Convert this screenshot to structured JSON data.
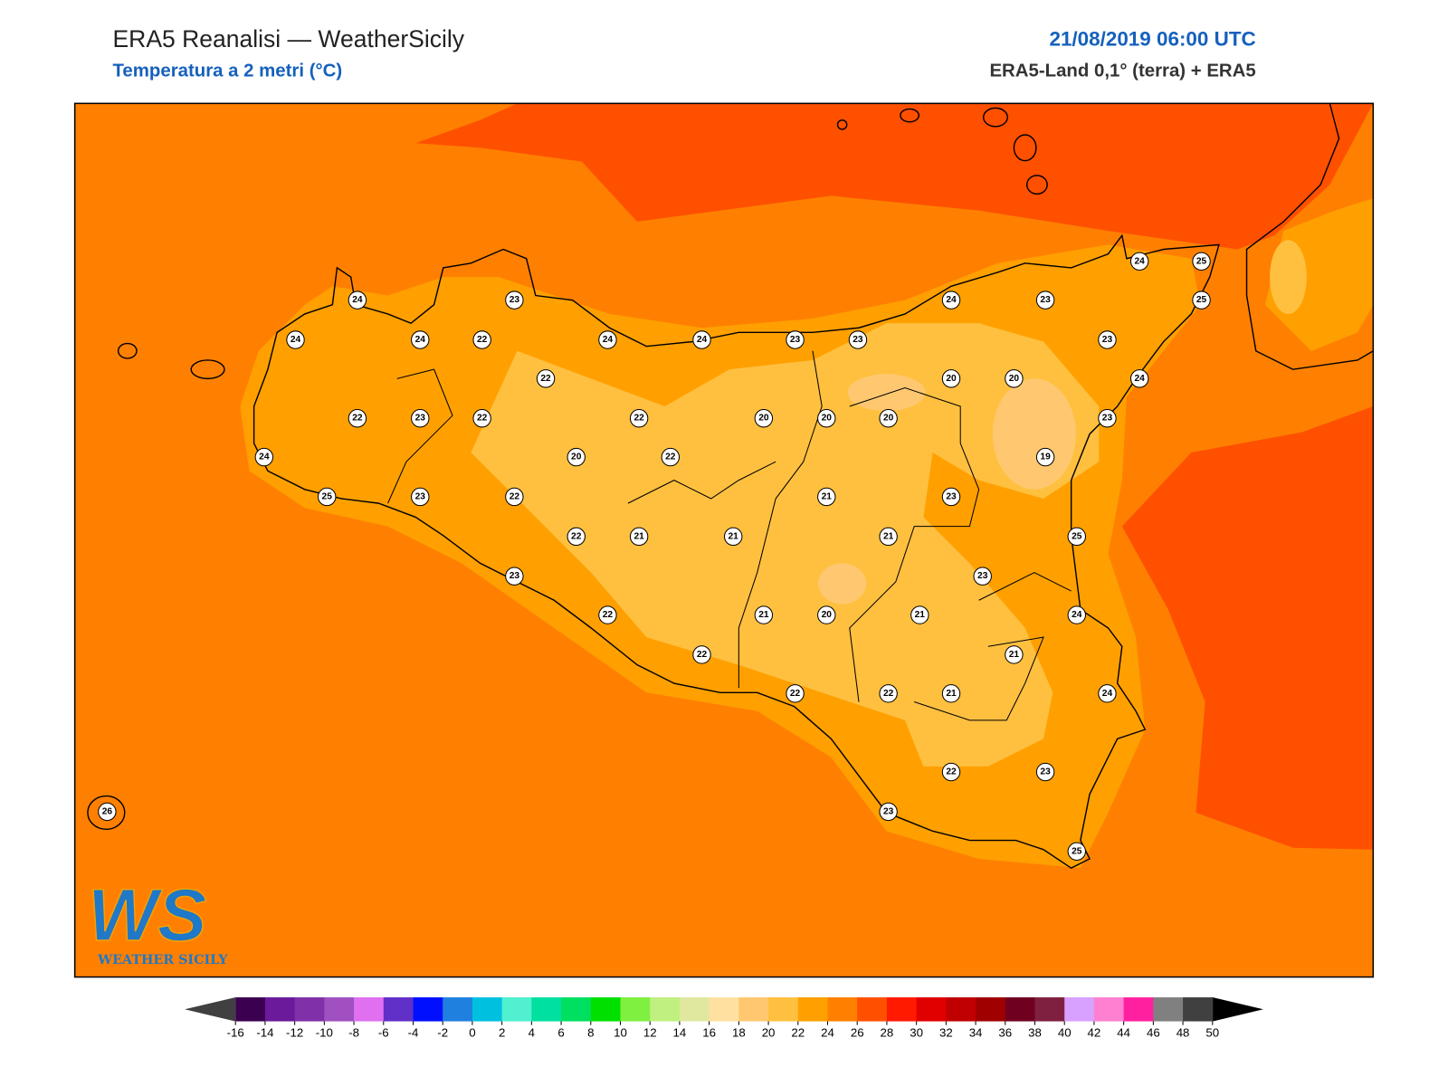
{
  "header": {
    "title": "ERA5 Reanalisi — WeatherSicily",
    "subtitle": "Temperatura a 2 metri (°C)",
    "date": "21/08/2019 06:00 UTC",
    "source": "ERA5-Land 0,1° (terra) + ERA5"
  },
  "logo": {
    "mark": "WS",
    "name": "WEATHER SICILY"
  },
  "stations": [
    24,
    23,
    24,
    24,
    22,
    24,
    24,
    23,
    23,
    24,
    23,
    24,
    25,
    25,
    23,
    22,
    20,
    20,
    24,
    22,
    23,
    22,
    22,
    20,
    20,
    20,
    23,
    24,
    20,
    22,
    19,
    25,
    23,
    22,
    21,
    23,
    22,
    21,
    21,
    21,
    25,
    23,
    23,
    22,
    21,
    20,
    21,
    24,
    22,
    21,
    22,
    22,
    21,
    24,
    22,
    23,
    23,
    25,
    26
  ],
  "colorbar": {
    "ticks": [
      -16,
      -14,
      -12,
      -10,
      -8,
      -6,
      -4,
      -2,
      0,
      2,
      4,
      6,
      8,
      10,
      12,
      14,
      16,
      18,
      20,
      22,
      24,
      26,
      28,
      30,
      32,
      34,
      36,
      38,
      40,
      42,
      44,
      46,
      48,
      50
    ],
    "colors": [
      "#3b0050",
      "#6a1a9a",
      "#8030a8",
      "#a050c0",
      "#e070f0",
      "#6030c8",
      "#0010ff",
      "#2080e0",
      "#00c0e0",
      "#50f0d0",
      "#00e0a0",
      "#00e060",
      "#00e000",
      "#80f040",
      "#c0f080",
      "#e0e8a0",
      "#ffe0a0",
      "#ffc870",
      "#ffc040",
      "#ffa000",
      "#ff8000",
      "#ff5000",
      "#ff1a00",
      "#e00000",
      "#c00000",
      "#a00000",
      "#700020",
      "#802040",
      "#d8a0ff",
      "#ff80d0",
      "#ff20a0",
      "#808080",
      "#404040"
    ],
    "under_color": "#404040",
    "over_color": "#000000"
  }
}
